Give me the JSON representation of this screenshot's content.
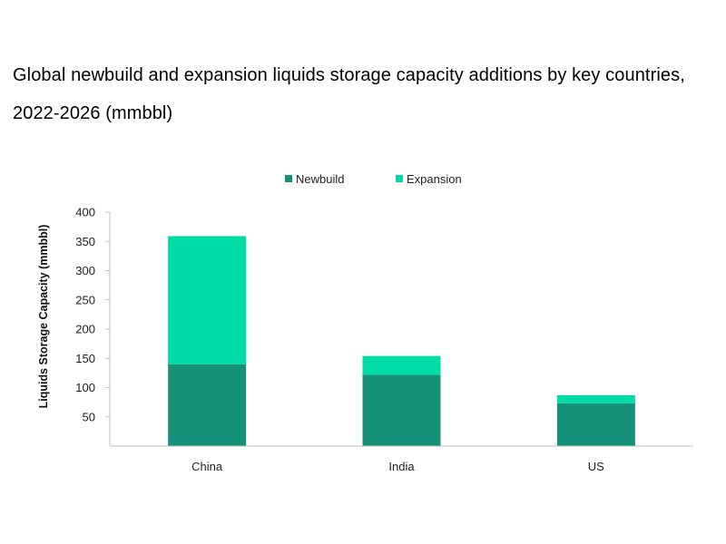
{
  "title": {
    "line1": "Global newbuild and expansion liquids storage capacity additions by key countries,",
    "line2": "2022-2026 (mmbbl)"
  },
  "chart_data": {
    "type": "bar",
    "stacked": true,
    "categories": [
      "China",
      "India",
      "US"
    ],
    "series": [
      {
        "name": "Newbuild",
        "color": "#149178",
        "values": [
          140,
          122,
          73
        ]
      },
      {
        "name": "Expansion",
        "color": "#00DCA5",
        "values": [
          219,
          32,
          14
        ]
      }
    ],
    "title": "Global newbuild and expansion liquids storage capacity additions by key countries, 2022-2026 (mmbbl)",
    "xlabel": "",
    "ylabel": "Liquids Storage Capacity (mmbbl)",
    "ylim": [
      0,
      400
    ],
    "yticks": [
      "50",
      "100",
      "150",
      "200",
      "250",
      "300",
      "350",
      "400"
    ],
    "grid": false,
    "legend_position": "top-center"
  }
}
